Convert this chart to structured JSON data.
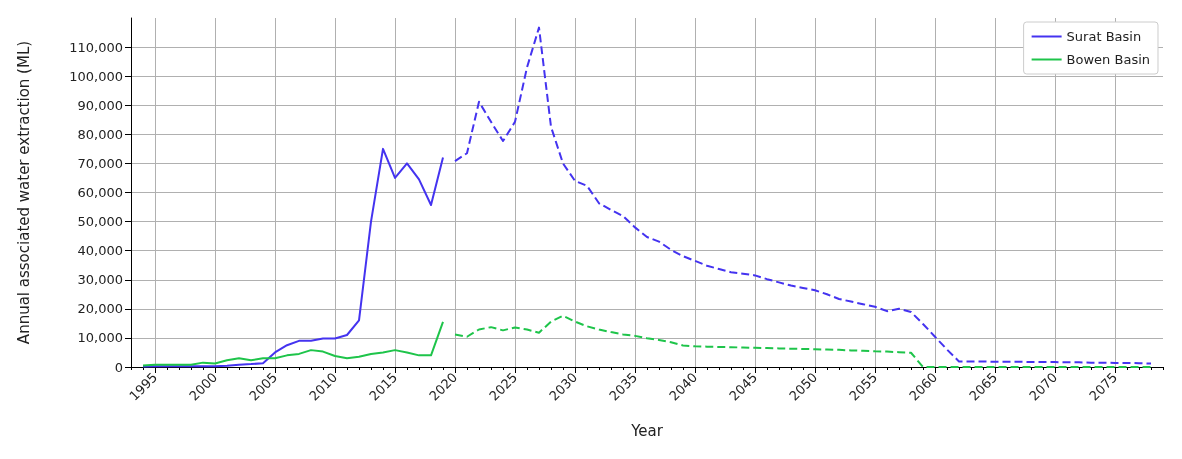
{
  "chart_data": {
    "type": "line",
    "xlabel": "Year",
    "ylabel": "Annual associated water extraction (ML)",
    "xlim": [
      1993,
      2079
    ],
    "xticks": [
      1995,
      2000,
      2005,
      2010,
      2015,
      2020,
      2025,
      2030,
      2035,
      2040,
      2045,
      2050,
      2055,
      2060,
      2065,
      2070,
      2075
    ],
    "ylim": [
      0,
      120000
    ],
    "yticks": [
      {
        "value": 0,
        "label": "0"
      },
      {
        "value": 10000,
        "label": "10,000"
      },
      {
        "value": 20000,
        "label": "20,000"
      },
      {
        "value": 30000,
        "label": "30,000"
      },
      {
        "value": 40000,
        "label": "40,000"
      },
      {
        "value": 50000,
        "label": "50,000"
      },
      {
        "value": 60000,
        "label": "60,000"
      },
      {
        "value": 70000,
        "label": "70,000"
      },
      {
        "value": 80000,
        "label": "80,000"
      },
      {
        "value": 90000,
        "label": "90,000"
      },
      {
        "value": 100000,
        "label": "100,000"
      },
      {
        "value": 110000,
        "label": "110,000"
      }
    ],
    "grid": true,
    "legend": "top right",
    "marker": "none",
    "series": [
      {
        "name": "Surat Basin",
        "color": "#4433f0",
        "line_style": "solid",
        "x": [
          1994,
          1995,
          1996,
          1997,
          1998,
          1999,
          2000,
          2001,
          2002,
          2003,
          2004,
          2005,
          2006,
          2007,
          2008,
          2009,
          2010,
          2011,
          2012,
          2013,
          2014,
          2015,
          2016,
          2017,
          2018,
          2019
        ],
        "values": [
          200,
          300,
          300,
          300,
          300,
          300,
          300,
          400,
          800,
          1000,
          1300,
          5000,
          7500,
          9000,
          9000,
          9800,
          9800,
          11000,
          16000,
          50000,
          75000,
          65000,
          70000,
          64500,
          55700,
          72000
        ]
      },
      {
        "name": "Bowen Basin",
        "color": "#1ec44a",
        "line_style": "solid",
        "x": [
          1994,
          1995,
          1996,
          1997,
          1998,
          1999,
          2000,
          2001,
          2002,
          2003,
          2004,
          2005,
          2006,
          2007,
          2008,
          2009,
          2010,
          2011,
          2012,
          2013,
          2014,
          2015,
          2016,
          2017,
          2018,
          2019
        ],
        "values": [
          500,
          800,
          800,
          800,
          800,
          1500,
          1200,
          2300,
          3000,
          2300,
          3000,
          3000,
          4000,
          4500,
          5800,
          5300,
          3800,
          3000,
          3500,
          4500,
          5000,
          5800,
          5000,
          4000,
          4000,
          15500
        ]
      },
      {
        "color": "#4433f0",
        "line_style": "dashed",
        "x": [
          2020,
          2021,
          2022,
          2023,
          2024,
          2025,
          2026,
          2027,
          2028,
          2029,
          2030,
          2031,
          2032,
          2033,
          2034,
          2035,
          2036,
          2037,
          2038,
          2039,
          2040,
          2041,
          2042,
          2043,
          2044,
          2045,
          2046,
          2047,
          2048,
          2049,
          2050,
          2051,
          2052,
          2053,
          2054,
          2055,
          2056,
          2057,
          2058,
          2059,
          2060,
          2061,
          2062,
          2063,
          2064,
          2065,
          2066,
          2067,
          2068,
          2069,
          2070,
          2071,
          2072,
          2073,
          2074,
          2075,
          2076,
          2077,
          2078
        ],
        "values": [
          70800,
          73500,
          91200,
          84300,
          77700,
          84300,
          103000,
          116700,
          82600,
          70000,
          64000,
          62300,
          56300,
          54000,
          51900,
          48000,
          44700,
          43100,
          40300,
          38100,
          36500,
          34800,
          33700,
          32600,
          32100,
          31500,
          30200,
          29100,
          28000,
          27200,
          26400,
          25000,
          23400,
          22500,
          21600,
          20700,
          19200,
          20000,
          18900,
          14800,
          10400,
          6000,
          1900,
          1900,
          1900,
          1800,
          1800,
          1800,
          1700,
          1700,
          1700,
          1600,
          1600,
          1500,
          1500,
          1400,
          1400,
          1300,
          1200
        ]
      },
      {
        "color": "#1ec44a",
        "line_style": "dashed",
        "x": [
          2020,
          2021,
          2022,
          2023,
          2024,
          2025,
          2026,
          2027,
          2028,
          2029,
          2030,
          2031,
          2032,
          2033,
          2034,
          2035,
          2036,
          2037,
          2038,
          2039,
          2040,
          2041,
          2042,
          2043,
          2044,
          2045,
          2046,
          2047,
          2048,
          2049,
          2050,
          2051,
          2052,
          2053,
          2054,
          2055,
          2056,
          2057,
          2058,
          2059,
          2060,
          2061,
          2062,
          2063,
          2064,
          2065,
          2066,
          2067,
          2068,
          2069,
          2070,
          2071,
          2072,
          2073,
          2074,
          2075,
          2076,
          2077,
          2078
        ],
        "values": [
          11200,
          10400,
          12900,
          13700,
          12600,
          13600,
          12900,
          11800,
          15600,
          17600,
          15600,
          14000,
          12900,
          12000,
          11200,
          10700,
          9900,
          9300,
          8500,
          7400,
          7100,
          7000,
          6900,
          6800,
          6700,
          6600,
          6500,
          6400,
          6300,
          6200,
          6100,
          6000,
          5900,
          5700,
          5600,
          5400,
          5300,
          5100,
          4900,
          0,
          0,
          0,
          0,
          0,
          0,
          0,
          0,
          0,
          0,
          0,
          0,
          0,
          0,
          0,
          0,
          0,
          0,
          0,
          0
        ]
      }
    ]
  }
}
